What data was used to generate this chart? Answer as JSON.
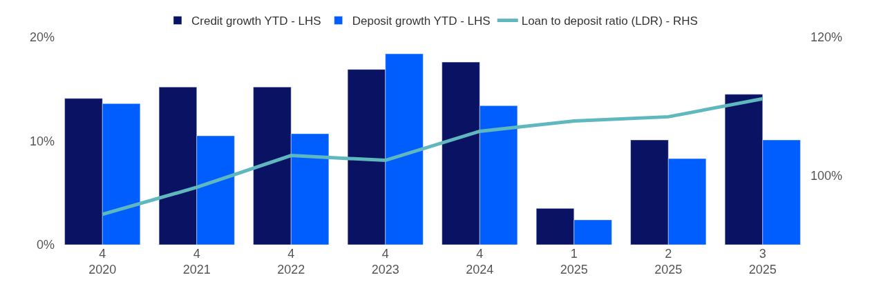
{
  "chart_data": {
    "type": "bar",
    "categories": [
      "4\n2020",
      "4\n2021",
      "4\n2022",
      "4\n2023",
      "4\n2024",
      "1\n2025",
      "2\n2025",
      "3\n2025"
    ],
    "series": [
      {
        "name": "Credit growth YTD - LHS",
        "color": "#0a1263",
        "values": [
          14.1,
          15.2,
          15.2,
          16.9,
          17.6,
          3.5,
          10.1,
          14.5
        ]
      },
      {
        "name": "Deposit growth YTD - LHS",
        "color": "#005eff",
        "values": [
          13.6,
          10.5,
          10.7,
          18.4,
          13.4,
          2.4,
          8.3,
          10.1
        ]
      },
      {
        "name": "Loan to deposit ratio (LDR) - RHS",
        "color": "#5fb8bd",
        "type": "line",
        "axis": "y2",
        "values": [
          94.4,
          98.3,
          102.9,
          102.2,
          106.4,
          107.9,
          108.5,
          111.1
        ]
      }
    ],
    "ylim": [
      0,
      20
    ],
    "yticks": [
      {
        "value": 0,
        "label": "0%"
      },
      {
        "value": 10,
        "label": "10%"
      },
      {
        "value": 20,
        "label": "20%"
      }
    ],
    "y2lim": [
      90,
      120
    ],
    "y2ticks": [
      {
        "value": 100,
        "label": "100%"
      },
      {
        "value": 120,
        "label": "120%"
      }
    ],
    "legend": "top",
    "marker": "none"
  }
}
